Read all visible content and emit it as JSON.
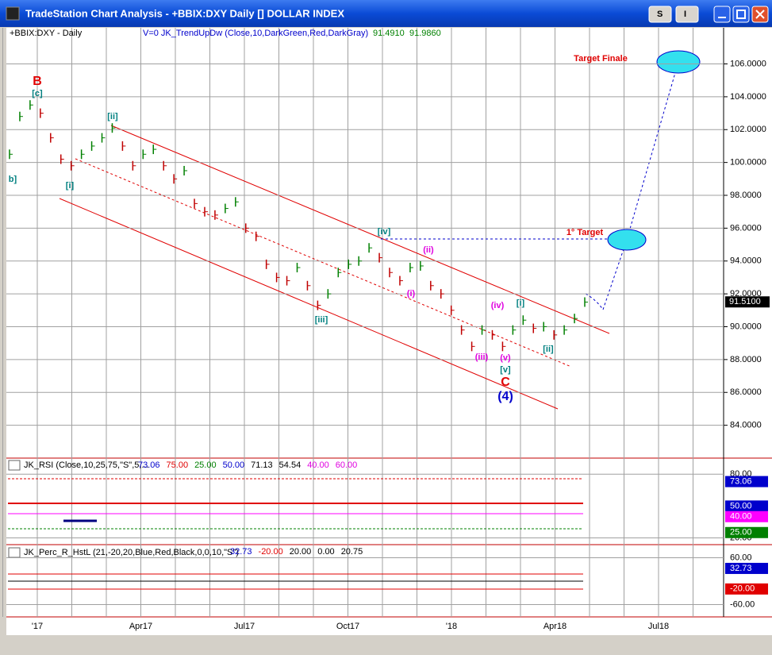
{
  "window": {
    "title": "TradeStation Chart Analysis - +BBIX:DXY Daily [] DOLLAR INDEX",
    "buttons": [
      "S",
      "I"
    ]
  },
  "price_panel": {
    "symbol_label": "+BBIX:DXY - Daily",
    "study_label": "V=0  JK_TrendUpDw (Close,10,DarkGreen,Red,DarkGray)",
    "study_values": [
      "91.4910",
      "91.9860"
    ],
    "ylim": [
      82,
      108.2
    ],
    "yticks": [
      {
        "value": 84,
        "label": "84.0000"
      },
      {
        "value": 86,
        "label": "86.0000"
      },
      {
        "value": 88,
        "label": "88.0000"
      },
      {
        "value": 90,
        "label": "90.0000"
      },
      {
        "value": 92,
        "label": "92.0000"
      },
      {
        "value": 94,
        "label": "94.0000"
      },
      {
        "value": 96,
        "label": "96.0000"
      },
      {
        "value": 98,
        "label": "98.0000"
      },
      {
        "value": 100,
        "label": "100.0000"
      },
      {
        "value": 102,
        "label": "102.0000"
      },
      {
        "value": 104,
        "label": "104.0000"
      },
      {
        "value": 106,
        "label": "106.0000"
      }
    ],
    "closes": [
      100.5,
      102.8,
      103.5,
      103.0,
      101.5,
      100.2,
      99.8,
      100.5,
      101.0,
      101.5,
      102.1,
      101.0,
      99.8,
      100.5,
      100.8,
      99.8,
      99.0,
      99.5,
      97.5,
      97.0,
      96.8,
      97.2,
      97.6,
      96.0,
      95.5,
      93.8,
      93.0,
      92.8,
      93.6,
      92.5,
      91.3,
      92.0,
      93.3,
      93.8,
      94.0,
      94.8,
      94.2,
      93.3,
      92.8,
      93.6,
      93.7,
      92.5,
      92.0,
      91.0,
      89.8,
      88.8,
      89.8,
      89.5,
      88.8,
      89.8,
      90.4,
      89.9,
      90.0,
      89.5,
      89.8,
      90.5,
      91.5
    ],
    "last_price": {
      "value": 91.51,
      "label": "91.5100"
    },
    "annotations": [
      {
        "text": "B",
        "color": "#e00000"
      },
      {
        "text": "[c]",
        "color": "#008080"
      },
      {
        "text": "b]",
        "color": "#008080"
      },
      {
        "text": "[i]",
        "color": "#008080"
      },
      {
        "text": "[ii]",
        "color": "#008080"
      },
      {
        "text": "[iii]",
        "color": "#008080"
      },
      {
        "text": "[iv]",
        "color": "#008080"
      },
      {
        "text": "(ii)",
        "color": "#e000e0"
      },
      {
        "text": "(i)",
        "color": "#e000e0"
      },
      {
        "text": "(iii)",
        "color": "#e000e0"
      },
      {
        "text": "(iv)",
        "color": "#e000e0"
      },
      {
        "text": "(v)",
        "color": "#e000e0"
      },
      {
        "text": "[v]",
        "color": "#008080"
      },
      {
        "text": "[i]",
        "color": "#008080"
      },
      {
        "text": "[ii]",
        "color": "#008080"
      },
      {
        "text": "C",
        "color": "#e00000"
      },
      {
        "text": "(4)",
        "color": "#0000cc"
      },
      {
        "text": "Target Finale",
        "color": "#e00000"
      },
      {
        "text": "1° Target",
        "color": "#e00000"
      }
    ]
  },
  "rsi_panel": {
    "header": "JK_RSI (Close,10,25,75,\"S\",5,...",
    "header_values": [
      {
        "text": "73.06",
        "color": "#0000cc"
      },
      {
        "text": "75.00",
        "color": "#e00000"
      },
      {
        "text": "25.00",
        "color": "#008000"
      },
      {
        "text": "50.00",
        "color": "#0000cc"
      },
      {
        "text": "71.13",
        "color": "#000000"
      },
      {
        "text": "54.54",
        "color": "#000000"
      },
      {
        "text": "40.00",
        "color": "#e000e0"
      },
      {
        "text": "60.00",
        "color": "#e000e0"
      }
    ],
    "ylim": [
      13.6,
      95.2
    ],
    "yticks": [
      {
        "value": 80,
        "label": "80.00"
      },
      {
        "value": 20,
        "label": "20.00"
      }
    ],
    "tags": [
      {
        "value": 73.06,
        "label": "73.06",
        "color": "#0000cc"
      },
      {
        "value": 50,
        "label": "50.00",
        "color": "#0000cc"
      },
      {
        "value": 40,
        "label": "40.00",
        "color": "#ff00ff"
      },
      {
        "value": 25,
        "label": "25.00",
        "color": "#008000"
      }
    ]
  },
  "percr_panel": {
    "header": "JK_Perc_R_HstL (21,-20,20,Blue,Red,Black,0,0,10,\"S\")",
    "header_values": [
      {
        "text": "32.73",
        "color": "#0000cc"
      },
      {
        "text": "-20.00",
        "color": "#e00000"
      },
      {
        "text": "20.00",
        "color": "#000000"
      },
      {
        "text": "0.00",
        "color": "#000000"
      },
      {
        "text": "20.75",
        "color": "#000000"
      }
    ],
    "ylim": [
      -91.6,
      93.7
    ],
    "yticks": [
      {
        "value": 60,
        "label": "60.00"
      },
      {
        "value": -60,
        "label": "-60.00"
      }
    ],
    "tags": [
      {
        "value": 32.73,
        "label": "32.73",
        "color": "#0000cc"
      },
      {
        "value": -20,
        "label": "-20.00",
        "color": "#e00000"
      }
    ]
  },
  "x_axis": {
    "labels": [
      "'17",
      "Apr17",
      "Jul17",
      "Oct17",
      "'18",
      "Apr18",
      "Jul18"
    ]
  }
}
